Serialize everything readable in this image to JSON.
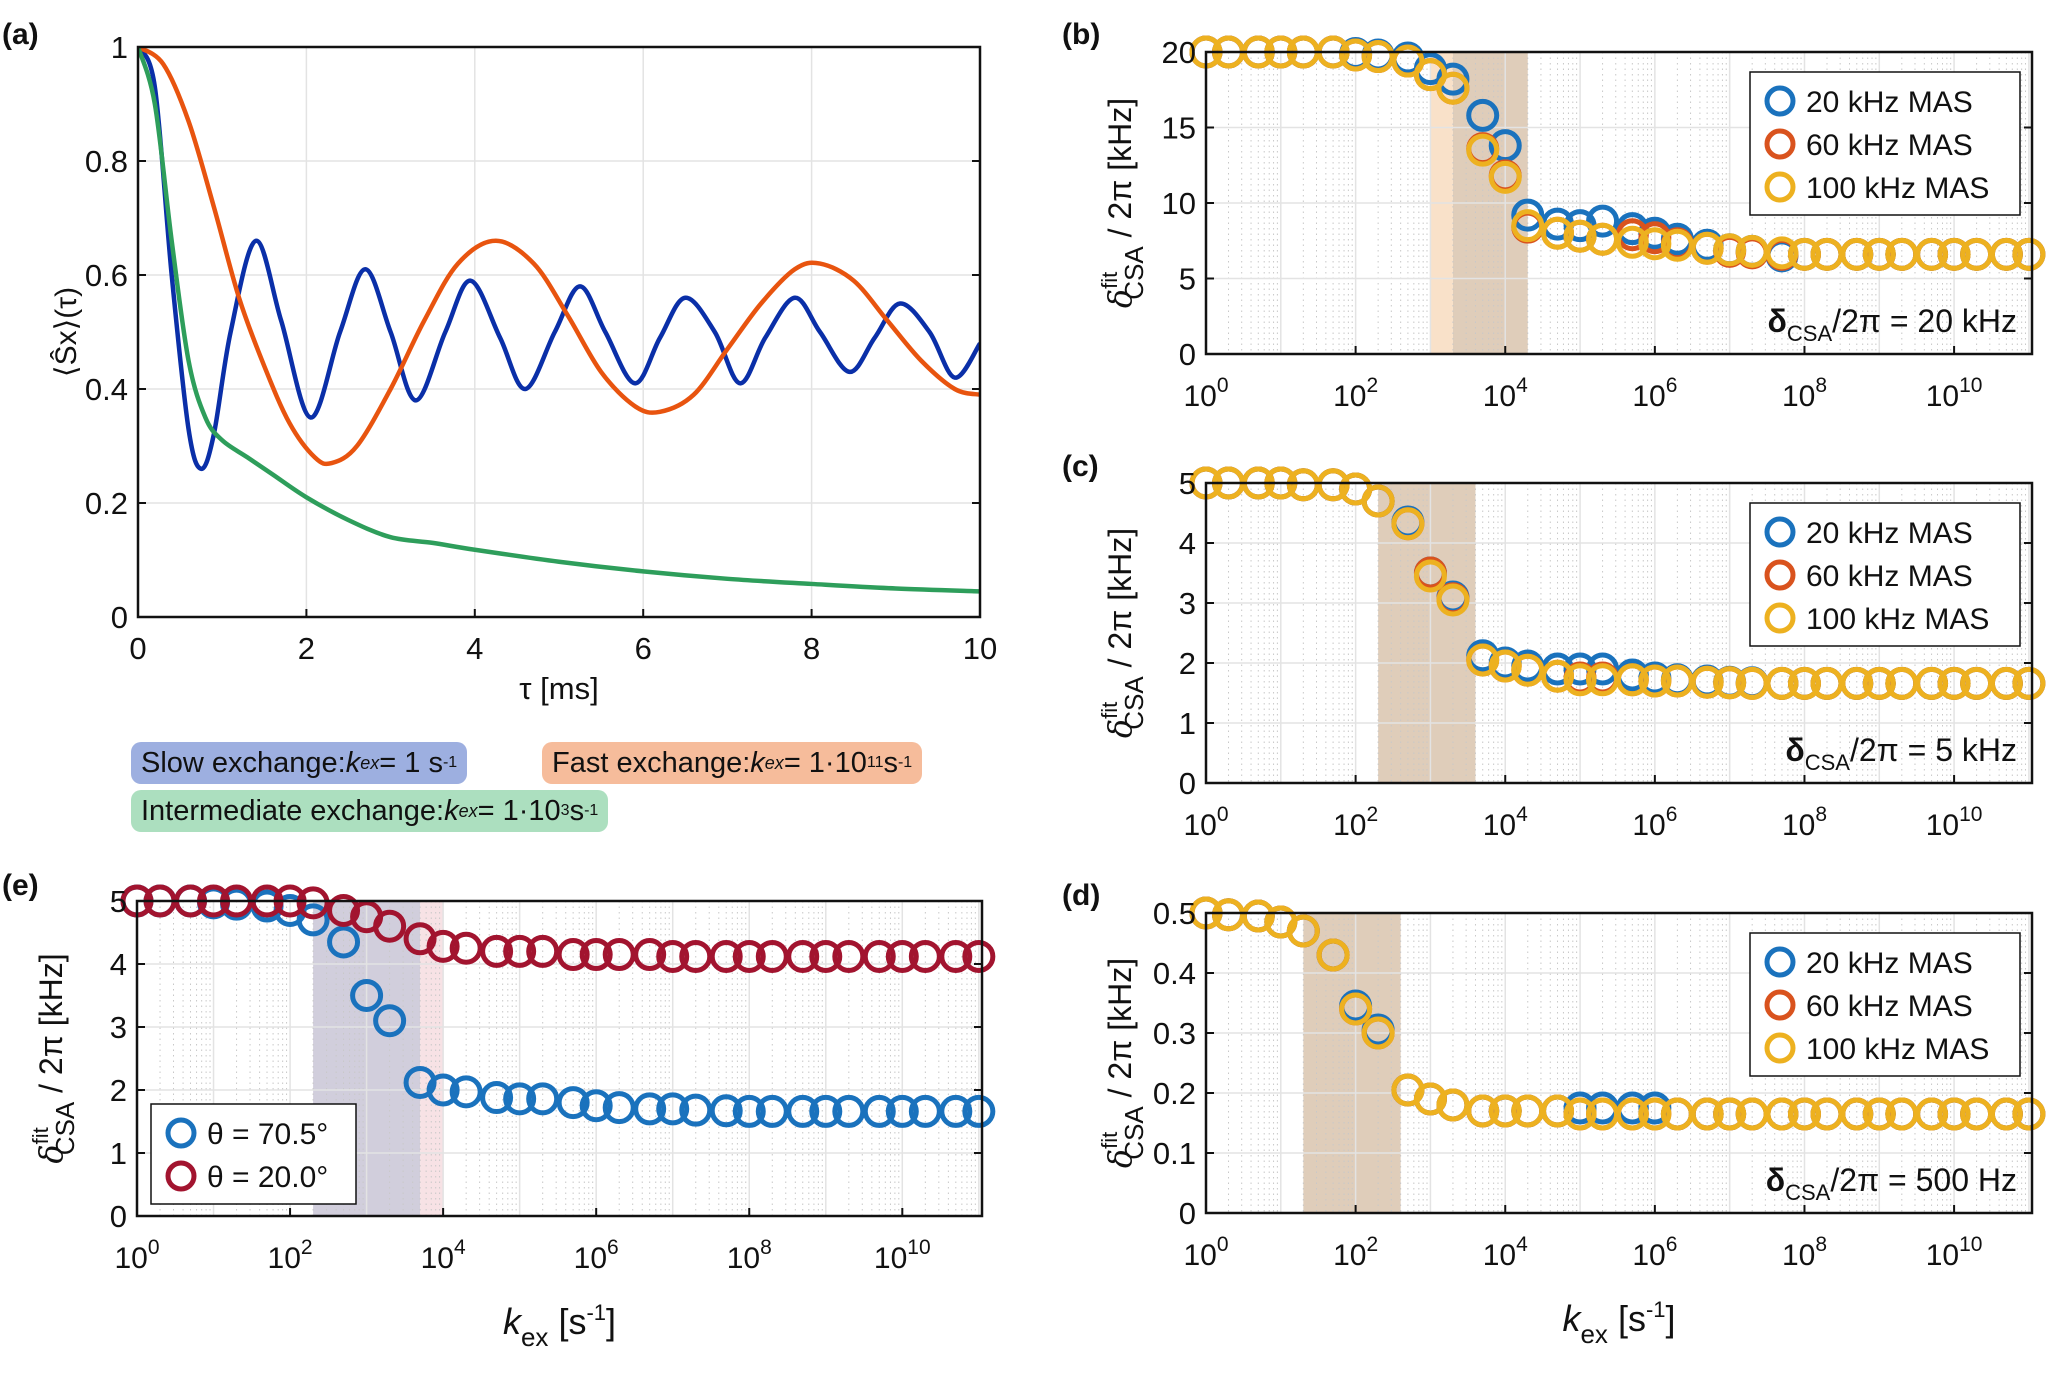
{
  "figure": {
    "panel_labels": [
      "(a)",
      "(b)",
      "(c)",
      "(d)",
      "(e)"
    ]
  },
  "legend_a": [
    {
      "prefix": "Slow exchange: ",
      "k": "k",
      "ksub": "ex",
      "mid": " = 1 s",
      "sup1": "",
      "mid2": "",
      "sup": "-1",
      "color": "#9dafe0"
    },
    {
      "prefix": "Fast exchange: ",
      "k": "k",
      "ksub": "ex",
      "mid": " = 1·10",
      "sup1": "11",
      "mid2": " s",
      "sup": "-1",
      "color": "#f6bc9b"
    },
    {
      "prefix": "Intermediate exchange: ",
      "k": "k",
      "ksub": "ex",
      "mid": " = 1·10",
      "sup1": "3",
      "mid2": " s",
      "sup": "-1",
      "color": "#acdfbf"
    }
  ],
  "chart_data": [
    {
      "id": "a",
      "type": "line",
      "title": "",
      "xlabel": "τ [ms]",
      "ylabel": "⟨Ŝx⟩(τ)",
      "xlim": [
        0,
        10
      ],
      "ylim": [
        0,
        1
      ],
      "xticks": [
        0,
        2,
        4,
        6,
        8,
        10
      ],
      "yticks": [
        0,
        0.2,
        0.4,
        0.6,
        0.8,
        1
      ],
      "yticklabels": [
        "0",
        "0.2",
        "0.4",
        "0.6",
        "0.8",
        "1"
      ],
      "grid": true,
      "series": [
        {
          "name": "Slow exchange",
          "color": "#0a2fa8",
          "x": [
            0,
            0.2,
            0.4,
            0.6,
            0.75,
            0.9,
            1.1,
            1.4,
            1.7,
            2.05,
            2.4,
            2.7,
            3.0,
            3.3,
            3.65,
            3.95,
            4.3,
            4.6,
            4.95,
            5.25,
            5.55,
            5.9,
            6.2,
            6.5,
            6.85,
            7.15,
            7.45,
            7.8,
            8.1,
            8.45,
            8.75,
            9.05,
            9.4,
            9.7,
            10.0
          ],
          "y": [
            1.0,
            0.93,
            0.6,
            0.33,
            0.26,
            0.32,
            0.5,
            0.66,
            0.52,
            0.35,
            0.5,
            0.61,
            0.5,
            0.38,
            0.5,
            0.59,
            0.49,
            0.4,
            0.5,
            0.58,
            0.5,
            0.41,
            0.49,
            0.56,
            0.5,
            0.41,
            0.49,
            0.56,
            0.5,
            0.43,
            0.49,
            0.55,
            0.5,
            0.42,
            0.48
          ]
        },
        {
          "name": "Fast exchange",
          "color": "#e8540f",
          "x": [
            0,
            0.3,
            0.6,
            0.9,
            1.2,
            1.5,
            1.8,
            2.1,
            2.3,
            2.6,
            3.0,
            3.4,
            3.8,
            4.25,
            4.7,
            5.1,
            5.5,
            5.9,
            6.2,
            6.6,
            7.0,
            7.4,
            7.8,
            8.1,
            8.5,
            8.9,
            9.3,
            9.7,
            10.0
          ],
          "y": [
            1.0,
            0.97,
            0.87,
            0.72,
            0.56,
            0.44,
            0.34,
            0.28,
            0.27,
            0.3,
            0.4,
            0.52,
            0.62,
            0.66,
            0.62,
            0.53,
            0.43,
            0.37,
            0.36,
            0.39,
            0.47,
            0.55,
            0.61,
            0.62,
            0.59,
            0.52,
            0.45,
            0.4,
            0.39
          ]
        },
        {
          "name": "Intermediate exchange",
          "color": "#2e9e5b",
          "x": [
            0,
            0.2,
            0.4,
            0.6,
            0.8,
            1.0,
            1.3,
            1.6,
            2.0,
            2.5,
            3.0,
            3.5,
            4.0,
            5.0,
            6.0,
            7.0,
            8.0,
            9.0,
            10.0
          ],
          "y": [
            1.0,
            0.9,
            0.66,
            0.45,
            0.35,
            0.31,
            0.28,
            0.25,
            0.21,
            0.17,
            0.14,
            0.13,
            0.118,
            0.097,
            0.08,
            0.067,
            0.058,
            0.05,
            0.045
          ]
        }
      ]
    },
    {
      "id": "b",
      "type": "scatter",
      "xscale": "log",
      "xlabel": "",
      "ylabel": "δ^fit_CSA / 2π [kHz]",
      "xlim": [
        1,
        110000000000.0
      ],
      "ylim": [
        0,
        20
      ],
      "yticks": [
        0,
        5,
        10,
        15,
        20
      ],
      "xticks": [
        "10^0",
        "10^2",
        "10^4",
        "10^6",
        "10^8",
        "10^10"
      ],
      "annotation": "δCSA/2π = 20 kHz",
      "legend": [
        "20 kHz MAS",
        "60 kHz MAS",
        "100 kHz MAS"
      ],
      "legend_position": "top-right",
      "shaded": [
        {
          "from": 1000,
          "to": 2000,
          "color": "#f8dcc0"
        },
        {
          "from": 2000,
          "to": 20000,
          "color": "#d9c4ae"
        }
      ],
      "x": [
        1,
        2,
        5,
        10,
        20,
        50,
        100,
        200,
        500,
        1000,
        2000,
        5000,
        10000,
        20000,
        50000,
        100000,
        200000,
        500000,
        1000000,
        2000000,
        5000000,
        10000000,
        20000000,
        50000000,
        100000000,
        200000000,
        500000000,
        1000000000,
        2000000000,
        5000000000,
        10000000000,
        20000000000,
        50000000000,
        100000000000
      ],
      "series": [
        {
          "name": "20 kHz MAS",
          "color": "#1a72bd",
          "y": [
            20,
            20,
            20,
            20,
            20,
            20,
            19.9,
            19.8,
            19.6,
            18.9,
            18.2,
            15.8,
            13.8,
            9.2,
            8.6,
            8.5,
            8.8,
            8.3,
            8.0,
            7.6,
            7.2,
            6.9,
            6.8,
            6.5,
            6.6,
            6.6,
            6.6,
            6.6,
            6.6,
            6.6,
            6.6,
            6.6,
            6.6,
            6.6
          ]
        },
        {
          "name": "60 kHz MAS",
          "color": "#d9531e",
          "y": [
            20,
            20,
            20,
            20,
            20,
            20,
            19.8,
            19.7,
            19.4,
            18.5,
            17.6,
            13.6,
            11.8,
            8.4,
            8.0,
            7.8,
            7.6,
            7.9,
            7.7,
            7.3,
            7.0,
            6.8,
            6.7,
            6.6,
            6.6,
            6.6,
            6.6,
            6.6,
            6.6,
            6.6,
            6.6,
            6.6,
            6.6,
            6.6
          ]
        },
        {
          "name": "100 kHz MAS",
          "color": "#edb120",
          "y": [
            20,
            20,
            20,
            20,
            20,
            20,
            19.8,
            19.7,
            19.4,
            18.5,
            17.6,
            13.5,
            11.7,
            8.5,
            8.0,
            7.8,
            7.6,
            7.4,
            7.3,
            7.2,
            7.0,
            6.9,
            6.8,
            6.7,
            6.6,
            6.6,
            6.6,
            6.6,
            6.6,
            6.6,
            6.6,
            6.6,
            6.6,
            6.6
          ]
        }
      ]
    },
    {
      "id": "c",
      "type": "scatter",
      "xscale": "log",
      "xlabel": "",
      "ylabel": "δ^fit_CSA / 2π [kHz]",
      "xlim": [
        1,
        110000000000.0
      ],
      "ylim": [
        0,
        5
      ],
      "yticks": [
        0,
        1,
        2,
        3,
        4,
        5
      ],
      "xticks": [
        "10^0",
        "10^2",
        "10^4",
        "10^6",
        "10^8",
        "10^10"
      ],
      "annotation": "δCSA/2π = 5 kHz",
      "legend": [
        "20 kHz MAS",
        "60 kHz MAS",
        "100 kHz MAS"
      ],
      "legend_position": "top-right",
      "shaded": [
        {
          "from": 200,
          "to": 4000,
          "color": "#d9c4ae"
        }
      ],
      "x": [
        1,
        2,
        5,
        10,
        20,
        50,
        100,
        200,
        500,
        1000,
        2000,
        5000,
        10000,
        20000,
        50000,
        100000,
        200000,
        500000,
        1000000,
        2000000,
        5000000,
        10000000,
        20000000,
        50000000,
        100000000,
        200000000,
        500000000,
        1000000000,
        2000000000,
        5000000000,
        10000000000,
        20000000000,
        50000000000,
        100000000000
      ],
      "series": [
        {
          "name": "20 kHz MAS",
          "color": "#1a72bd",
          "y": [
            5.0,
            5.0,
            5.0,
            5.0,
            4.97,
            4.97,
            4.9,
            4.7,
            4.35,
            3.5,
            3.1,
            2.12,
            2.0,
            1.95,
            1.9,
            1.9,
            1.9,
            1.8,
            1.75,
            1.72,
            1.7,
            1.68,
            1.67,
            1.66,
            1.66,
            1.66,
            1.66,
            1.66,
            1.66,
            1.66,
            1.66,
            1.66,
            1.66,
            1.66
          ]
        },
        {
          "name": "60 kHz MAS",
          "color": "#d9531e",
          "y": [
            5.0,
            5.0,
            5.0,
            5.0,
            4.97,
            4.97,
            4.9,
            4.7,
            4.32,
            3.5,
            3.07,
            2.05,
            1.95,
            1.88,
            1.78,
            1.75,
            1.75,
            1.72,
            1.7,
            1.7,
            1.68,
            1.67,
            1.66,
            1.66,
            1.66,
            1.66,
            1.66,
            1.66,
            1.66,
            1.66,
            1.66,
            1.66,
            1.66,
            1.66
          ]
        },
        {
          "name": "100 kHz MAS",
          "color": "#edb120",
          "y": [
            5.0,
            5.0,
            5.0,
            5.0,
            4.97,
            4.97,
            4.9,
            4.7,
            4.32,
            3.45,
            3.05,
            2.05,
            1.95,
            1.88,
            1.78,
            1.72,
            1.72,
            1.72,
            1.7,
            1.7,
            1.68,
            1.67,
            1.66,
            1.66,
            1.66,
            1.66,
            1.66,
            1.66,
            1.66,
            1.66,
            1.66,
            1.66,
            1.66,
            1.66
          ]
        }
      ]
    },
    {
      "id": "d",
      "type": "scatter",
      "xscale": "log",
      "xlabel": "k_ex [s^-1]",
      "ylabel": "δ^fit_CSA / 2π [kHz]",
      "xlim": [
        1,
        110000000000.0
      ],
      "ylim": [
        0,
        0.5
      ],
      "yticks": [
        0,
        0.1,
        0.2,
        0.3,
        0.4,
        0.5
      ],
      "xticks": [
        "10^0",
        "10^2",
        "10^4",
        "10^6",
        "10^8",
        "10^10"
      ],
      "annotation": "δCSA/2π = 500 Hz",
      "legend": [
        "20 kHz MAS",
        "60 kHz MAS",
        "100 kHz MAS"
      ],
      "legend_position": "top-right",
      "shaded": [
        {
          "from": 20,
          "to": 400,
          "color": "#d9c4ae"
        }
      ],
      "x": [
        1,
        2,
        5,
        10,
        20,
        50,
        100,
        200,
        500,
        1000,
        2000,
        5000,
        10000,
        20000,
        50000,
        100000,
        200000,
        500000,
        1000000,
        2000000,
        5000000,
        10000000,
        20000000,
        50000000,
        100000000,
        200000000,
        500000000,
        1000000000,
        2000000000,
        5000000000,
        10000000000,
        20000000000,
        50000000000,
        100000000000
      ],
      "series": [
        {
          "name": "20 kHz MAS",
          "color": "#1a72bd",
          "y": [
            0.5,
            0.497,
            0.495,
            0.485,
            0.47,
            0.43,
            0.345,
            0.305,
            0.205,
            0.19,
            0.18,
            0.17,
            0.17,
            0.17,
            0.17,
            0.175,
            0.175,
            0.175,
            0.175,
            0.165,
            0.165,
            0.165,
            0.165,
            0.165,
            0.165,
            0.165,
            0.165,
            0.165,
            0.165,
            0.165,
            0.165,
            0.165,
            0.165,
            0.165
          ]
        },
        {
          "name": "60 kHz MAS",
          "color": "#d9531e",
          "y": [
            0.5,
            0.497,
            0.495,
            0.485,
            0.47,
            0.43,
            0.34,
            0.3,
            0.205,
            0.19,
            0.18,
            0.17,
            0.17,
            0.17,
            0.17,
            0.165,
            0.165,
            0.165,
            0.165,
            0.165,
            0.165,
            0.165,
            0.165,
            0.165,
            0.165,
            0.165,
            0.165,
            0.165,
            0.165,
            0.165,
            0.165,
            0.165,
            0.165,
            0.165
          ]
        },
        {
          "name": "100 kHz MAS",
          "color": "#edb120",
          "y": [
            0.5,
            0.497,
            0.495,
            0.485,
            0.47,
            0.43,
            0.34,
            0.3,
            0.205,
            0.19,
            0.18,
            0.17,
            0.17,
            0.17,
            0.17,
            0.165,
            0.165,
            0.165,
            0.165,
            0.165,
            0.165,
            0.165,
            0.165,
            0.165,
            0.165,
            0.165,
            0.165,
            0.165,
            0.165,
            0.165,
            0.165,
            0.165,
            0.165,
            0.165
          ]
        }
      ]
    },
    {
      "id": "e",
      "type": "scatter",
      "xscale": "log",
      "xlabel": "k_ex [s^-1]",
      "ylabel": "δ^fit_CSA / 2π [kHz]",
      "xlim": [
        1,
        110000000000.0
      ],
      "ylim": [
        0,
        5
      ],
      "yticks": [
        0,
        1,
        2,
        3,
        4,
        5
      ],
      "xticks": [
        "10^0",
        "10^2",
        "10^4",
        "10^6",
        "10^8",
        "10^10"
      ],
      "annotation": "",
      "legend": [
        "θ = 70.5°",
        "θ = 20.0°"
      ],
      "legend_position": "bottom-left",
      "shaded": [
        {
          "from": 200,
          "to": 5000,
          "color": "#c9c5d6"
        },
        {
          "from": 5000,
          "to": 10000,
          "color": "#f6dde0"
        }
      ],
      "x": [
        1,
        2,
        5,
        10,
        20,
        50,
        100,
        200,
        500,
        1000,
        2000,
        5000,
        10000,
        20000,
        50000,
        100000,
        200000,
        500000,
        1000000,
        2000000,
        5000000,
        10000000,
        20000000,
        50000000,
        100000000,
        200000000,
        500000000,
        1000000000,
        2000000000,
        5000000000,
        10000000000,
        20000000000,
        50000000000,
        100000000000
      ],
      "series": [
        {
          "name": "θ = 70.5°",
          "color": "#1a72bd",
          "y": [
            5.0,
            5.0,
            5.0,
            4.97,
            4.95,
            4.92,
            4.85,
            4.7,
            4.35,
            3.5,
            3.1,
            2.12,
            2.0,
            1.97,
            1.88,
            1.86,
            1.86,
            1.8,
            1.75,
            1.72,
            1.7,
            1.7,
            1.68,
            1.67,
            1.66,
            1.66,
            1.66,
            1.66,
            1.66,
            1.66,
            1.66,
            1.66,
            1.66,
            1.66
          ]
        },
        {
          "name": "θ = 20.0°",
          "color": "#a2142f",
          "y": [
            5.0,
            5.0,
            5.0,
            5.0,
            5.0,
            5.0,
            5.0,
            4.97,
            4.85,
            4.75,
            4.6,
            4.4,
            4.28,
            4.25,
            4.2,
            4.2,
            4.2,
            4.15,
            4.15,
            4.15,
            4.15,
            4.12,
            4.12,
            4.12,
            4.12,
            4.12,
            4.12,
            4.12,
            4.12,
            4.12,
            4.12,
            4.12,
            4.12,
            4.12
          ]
        }
      ]
    }
  ]
}
